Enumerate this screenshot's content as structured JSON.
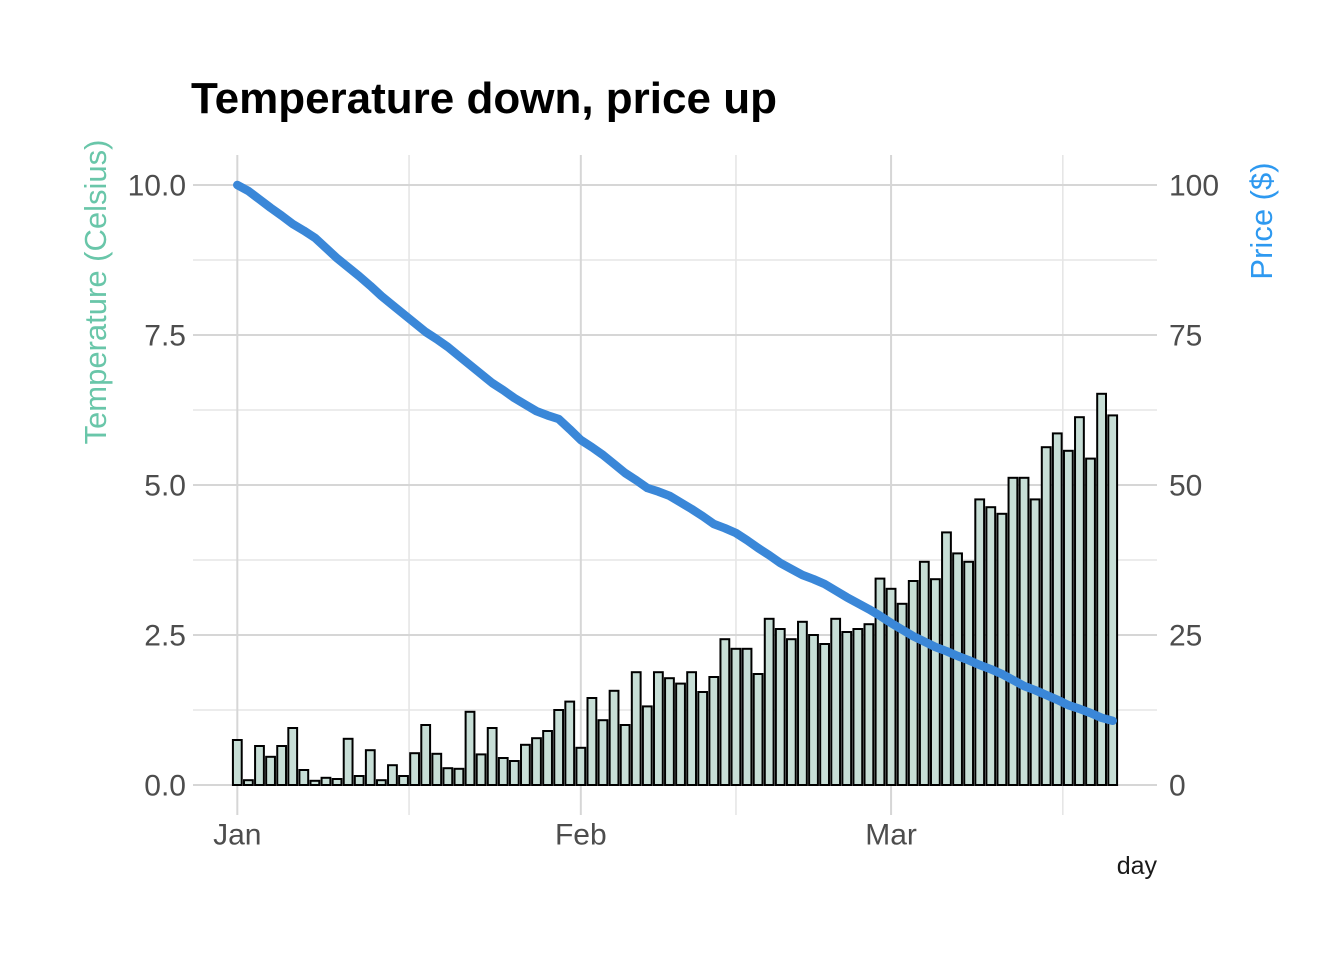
{
  "title": "Temperature down, price up",
  "axes": {
    "left_title": "Temperature (Celsius)",
    "right_title": "Price ($)",
    "x_title": "day"
  },
  "colors": {
    "background": "#ffffff",
    "title": "#000000",
    "bar_fill": "#c7ded6",
    "bar_stroke": "#000000",
    "line": "#3a87d8",
    "left_axis_title": "#69c6a9",
    "right_axis_title": "#2e99f0",
    "tick_label": "#4d4d4d",
    "grid_major": "#d6d6d6",
    "grid_minor": "#e6e6e6",
    "x_axis_title": "#1a1a1a"
  },
  "chart_data": {
    "type": "bar",
    "subtype": "combo bar + line, dual y-axis",
    "title": "Temperature down, price up",
    "xlabel": "day",
    "x_days_total": 80,
    "x_day_range_with_expansion": [
      -3,
      84
    ],
    "x_ticks": [
      {
        "label": "Jan",
        "day": 1
      },
      {
        "label": "Feb",
        "day": 32
      },
      {
        "label": "Mar",
        "day": 60
      }
    ],
    "x_minor_days": [
      16.5,
      46,
      75.5
    ],
    "left_axis": {
      "label": "Temperature (Celsius)",
      "tick_labels": [
        "0.0",
        "2.5",
        "5.0",
        "7.5",
        "10.0"
      ],
      "tick_values": [
        0,
        2.5,
        5,
        7.5,
        10
      ],
      "minor_values": [
        1.25,
        3.75,
        6.25,
        8.75
      ],
      "range_with_expansion": [
        -0.5,
        10.5
      ],
      "grid": true,
      "legend": "none"
    },
    "right_axis": {
      "label": "Price ($)",
      "tick_labels": [
        "0",
        "25",
        "50",
        "75",
        "100"
      ],
      "tick_values": [
        0,
        25,
        50,
        75,
        100
      ],
      "scale_factor_vs_left": 10
    },
    "series": [
      {
        "name": "temperature_bars",
        "geom": "bar",
        "axis": "left",
        "values": [
          0.75,
          0.08,
          0.65,
          0.47,
          0.65,
          0.95,
          0.25,
          0.07,
          0.12,
          0.1,
          0.77,
          0.15,
          0.58,
          0.08,
          0.33,
          0.15,
          0.53,
          1.0,
          0.52,
          0.28,
          0.27,
          1.22,
          0.51,
          0.95,
          0.45,
          0.4,
          0.67,
          0.78,
          0.9,
          1.25,
          1.39,
          0.62,
          1.45,
          1.08,
          1.57,
          1.0,
          1.88,
          1.31,
          1.88,
          1.78,
          1.69,
          1.88,
          1.55,
          1.8,
          2.43,
          2.27,
          2.27,
          1.85,
          2.77,
          2.6,
          2.43,
          2.72,
          2.5,
          2.35,
          2.77,
          2.55,
          2.6,
          2.68,
          3.44,
          3.27,
          3.02,
          3.4,
          3.72,
          3.43,
          4.21,
          3.86,
          3.72,
          4.76,
          4.63,
          4.52,
          5.12,
          5.12,
          4.76,
          5.63,
          5.86,
          5.57,
          6.13,
          5.44,
          6.52,
          6.16
        ]
      },
      {
        "name": "price_line",
        "geom": "line",
        "axis": "right",
        "values": [
          100.0,
          99.0,
          97.6,
          96.2,
          94.9,
          93.5,
          92.4,
          91.2,
          89.5,
          87.8,
          86.3,
          84.8,
          83.2,
          81.5,
          80.0,
          78.5,
          77.0,
          75.5,
          74.3,
          73.0,
          71.5,
          70.0,
          68.5,
          67.0,
          65.8,
          64.5,
          63.4,
          62.3,
          61.6,
          61.0,
          59.3,
          57.5,
          56.3,
          55.0,
          53.5,
          52.0,
          50.8,
          49.5,
          48.9,
          48.2,
          47.1,
          46.0,
          44.8,
          43.5,
          42.8,
          42.0,
          40.8,
          39.5,
          38.3,
          37.0,
          36.0,
          35.0,
          34.3,
          33.5,
          32.4,
          31.3,
          30.3,
          29.3,
          28.2,
          27.0,
          25.9,
          24.8,
          23.9,
          23.0,
          22.3,
          21.5,
          20.8,
          20.0,
          19.3,
          18.5,
          17.5,
          16.5,
          15.8,
          15.0,
          14.2,
          13.3,
          12.7,
          12.0,
          11.2,
          10.7
        ]
      }
    ]
  }
}
